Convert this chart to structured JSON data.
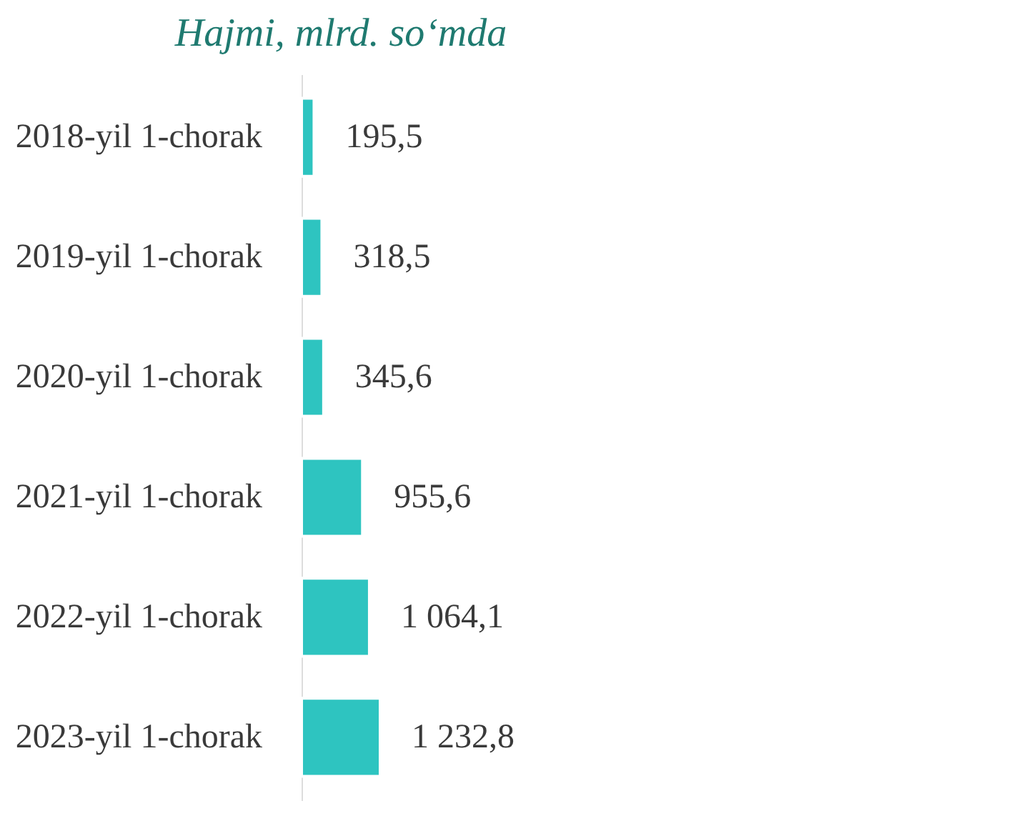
{
  "chart_data": {
    "type": "bar",
    "orientation": "horizontal",
    "title": "Hajmi, mlrd. so‘mda",
    "categories": [
      "2018-yil 1-chorak",
      "2019-yil 1-chorak",
      "2020-yil 1-chorak",
      "2021-yil 1-chorak",
      "2022-yil 1-chorak",
      "2023-yil 1-chorak"
    ],
    "values": [
      195.5,
      318.5,
      345.6,
      955.6,
      1064.1,
      1232.8
    ],
    "value_labels": [
      "195,5",
      "318,5",
      "345,6",
      "955,6",
      "1 064,1",
      "1 232,8"
    ],
    "color": "#2ec4c0"
  }
}
